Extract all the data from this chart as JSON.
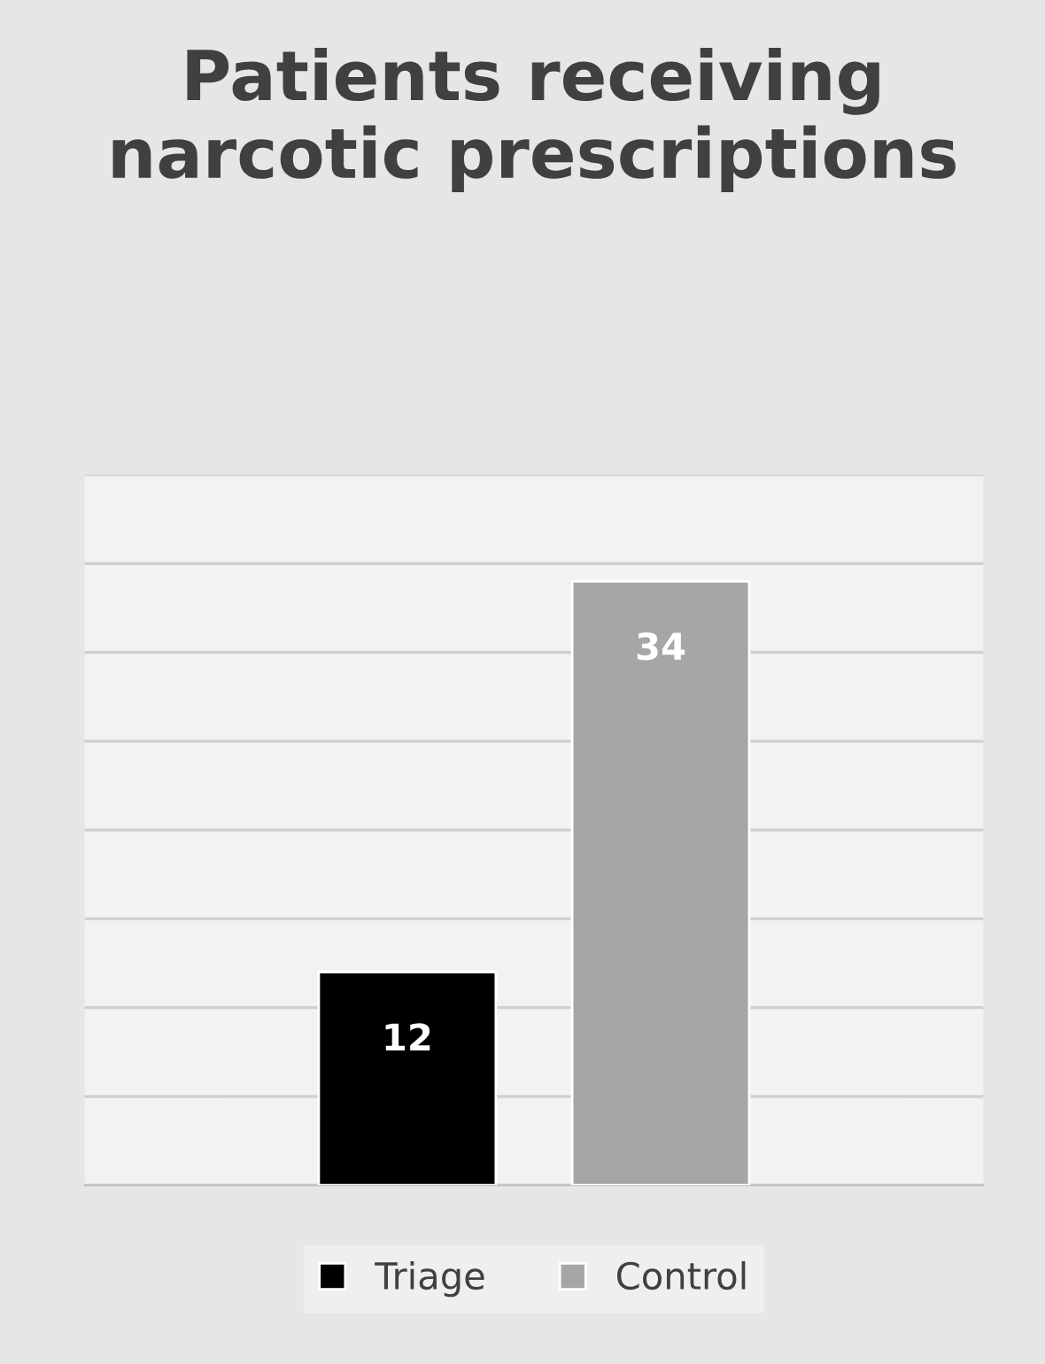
{
  "chart_data": {
    "type": "bar",
    "title": "Patients receiving narcotic prescriptions",
    "categories": [
      null
    ],
    "series": [
      {
        "name": "Triage",
        "color": "#000000",
        "values": [
          12
        ]
      },
      {
        "name": "Control",
        "color": "#a6a6a6",
        "values": [
          34
        ]
      }
    ],
    "ylim": [
      0,
      40
    ],
    "yticks": [
      {
        "value": 0,
        "label": null
      },
      {
        "value": 5,
        "label": null
      },
      {
        "value": 10,
        "label": null
      },
      {
        "value": 15,
        "label": null
      },
      {
        "value": 20,
        "label": null
      },
      {
        "value": 25,
        "label": null
      },
      {
        "value": 30,
        "label": null
      },
      {
        "value": 35,
        "label": null
      },
      {
        "value": 40,
        "label": null
      }
    ],
    "grid": "y",
    "legend": "bottom",
    "data_labels": true
  }
}
